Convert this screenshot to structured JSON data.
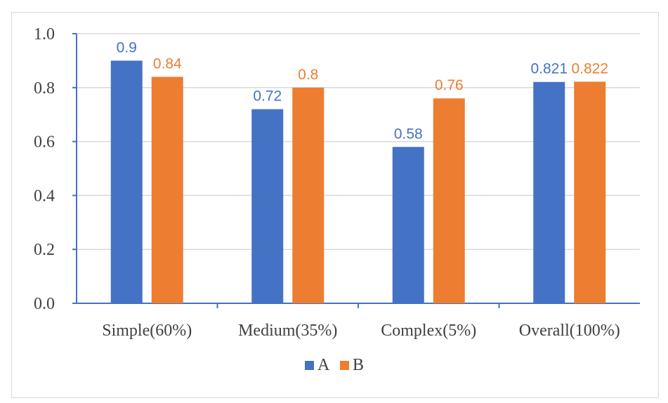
{
  "chart_data": {
    "type": "bar",
    "categories": [
      "Simple(60%)",
      "Medium(35%)",
      "Complex(5%)",
      "Overall(100%)"
    ],
    "series": [
      {
        "name": "A",
        "values": [
          0.9,
          0.72,
          0.58,
          0.821
        ],
        "labels": [
          "0.9",
          "0.72",
          "0.58",
          "0.821"
        ],
        "color": "#4472c4"
      },
      {
        "name": "B",
        "values": [
          0.84,
          0.8,
          0.76,
          0.822
        ],
        "labels": [
          "0.84",
          "0.8",
          "0.76",
          "0.822"
        ],
        "color": "#ed7d31"
      }
    ],
    "ylim": [
      0,
      1.0
    ],
    "yticks": [
      "0.0",
      "0.2",
      "0.4",
      "0.6",
      "0.8",
      "1.0"
    ],
    "grid": true,
    "legend": "bottom",
    "title": "",
    "xlabel": "",
    "ylabel": ""
  }
}
